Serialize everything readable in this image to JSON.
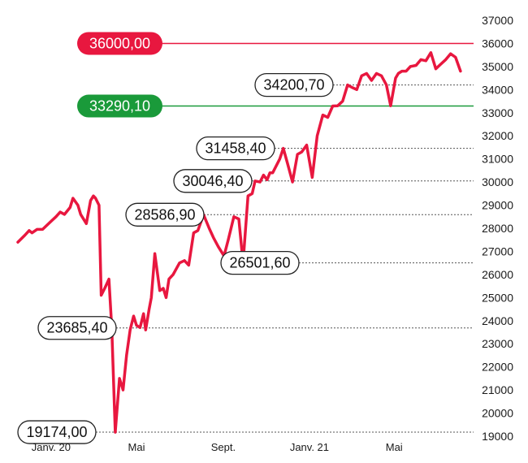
{
  "chart_data": {
    "type": "line",
    "title": "",
    "xlabel": "",
    "ylabel": "",
    "ylim": [
      19000,
      37000
    ],
    "y_ticks": [
      "37000",
      "36000",
      "35000",
      "34000",
      "33000",
      "32000",
      "31000",
      "30000",
      "29000",
      "28000",
      "27000",
      "26000",
      "25000",
      "24000",
      "23000",
      "22000",
      "21000",
      "20000",
      "19000"
    ],
    "x_ticks": [
      "Janv. 20",
      "Mai",
      "Sept.",
      "Janv. 21",
      "Mai"
    ],
    "x_tick_dates": [
      "2020-01-01",
      "2020-05-01",
      "2020-09-01",
      "2021-01-01",
      "2021-05-01"
    ],
    "x_range": [
      "2019-11-15",
      "2021-08-10"
    ],
    "series_color": "#e8173f",
    "series": [
      {
        "x": [
          "2019-11-15",
          "2019-11-25",
          "2019-12-01",
          "2019-12-05",
          "2019-12-12",
          "2019-12-20",
          "2020-01-01",
          "2020-01-08",
          "2020-01-14",
          "2020-01-20",
          "2020-01-28",
          "2020-02-01",
          "2020-02-08",
          "2020-02-12",
          "2020-02-20",
          "2020-02-26",
          "2020-03-01",
          "2020-03-04",
          "2020-03-09",
          "2020-03-12",
          "2020-03-17",
          "2020-03-23",
          "2020-03-27",
          "2020-04-01",
          "2020-04-07",
          "2020-04-12",
          "2020-04-17",
          "2020-04-22",
          "2020-04-27",
          "2020-05-01",
          "2020-05-06",
          "2020-05-11",
          "2020-05-14",
          "2020-05-19",
          "2020-05-22",
          "2020-05-27",
          "2020-06-03",
          "2020-06-08",
          "2020-06-12",
          "2020-06-16",
          "2020-06-22",
          "2020-07-01",
          "2020-07-08",
          "2020-07-14",
          "2020-07-21",
          "2020-07-27",
          "2020-08-04",
          "2020-08-12",
          "2020-08-18",
          "2020-08-25",
          "2020-09-02",
          "2020-09-08",
          "2020-09-16",
          "2020-09-23",
          "2020-09-29",
          "2020-10-06",
          "2020-10-12",
          "2020-10-16",
          "2020-10-23",
          "2020-10-28",
          "2020-11-02",
          "2020-11-06",
          "2020-11-10",
          "2020-11-20",
          "2020-11-25",
          "2020-12-01",
          "2020-12-08",
          "2020-12-15",
          "2020-12-21",
          "2020-12-28",
          "2021-01-05",
          "2021-01-12",
          "2021-01-20",
          "2021-01-27",
          "2021-02-03",
          "2021-02-10",
          "2021-02-17",
          "2021-02-24",
          "2021-03-02",
          "2021-03-09",
          "2021-03-16",
          "2021-03-23",
          "2021-03-30",
          "2021-04-06",
          "2021-04-13",
          "2021-04-20",
          "2021-04-26",
          "2021-05-03",
          "2021-05-07",
          "2021-05-12",
          "2021-05-18",
          "2021-05-24",
          "2021-06-01",
          "2021-06-08",
          "2021-06-15",
          "2021-06-22",
          "2021-06-29",
          "2021-07-06",
          "2021-07-13",
          "2021-07-20",
          "2021-07-27",
          "2021-08-03"
        ],
        "y": [
          27400,
          27700,
          27900,
          27800,
          27950,
          27950,
          28300,
          28500,
          28700,
          28600,
          28900,
          29300,
          29000,
          28600,
          28200,
          29200,
          29400,
          29300,
          29000,
          25100,
          25400,
          25800,
          23685,
          19174,
          21500,
          21000,
          22500,
          23600,
          24200,
          23800,
          23700,
          24300,
          23600,
          24500,
          25000,
          26900,
          25300,
          25400,
          25000,
          25800,
          26000,
          26500,
          26600,
          26400,
          27800,
          27900,
          28586.9,
          28000,
          27600,
          27200,
          26800,
          27500,
          28500,
          28400,
          26501.6,
          29400,
          29500,
          30046.4,
          30000,
          30300,
          30100,
          30400,
          30400,
          31000,
          31458.4,
          30800,
          30000,
          31200,
          31300,
          31600,
          30200,
          32000,
          32900,
          32800,
          33290.1,
          33300,
          33500,
          34200.7,
          34100,
          34000,
          34600,
          34700,
          34400,
          34700,
          34600,
          34200.7,
          33300,
          34500,
          34700,
          34800,
          34800,
          35000,
          35050,
          35300,
          35250,
          35600,
          34900,
          35100,
          35300,
          35550,
          35400,
          34800
        ]
      }
    ],
    "reference_lines": [
      {
        "label": "36000,00",
        "value": 36000,
        "color": "#e8173f"
      },
      {
        "label": "33290,10",
        "value": 33290.1,
        "color": "#1a9a3a"
      }
    ],
    "callouts": [
      {
        "label": "34200,70",
        "value": 34200.7
      },
      {
        "label": "31458,40",
        "value": 31458.4
      },
      {
        "label": "30046,40",
        "value": 30046.4
      },
      {
        "label": "28586,90",
        "value": 28586.9
      },
      {
        "label": "26501,60",
        "value": 26501.6
      },
      {
        "label": "23685,40",
        "value": 23685.4
      },
      {
        "label": "19174,00",
        "value": 19174.0
      }
    ],
    "grid": false,
    "legend": "none"
  }
}
